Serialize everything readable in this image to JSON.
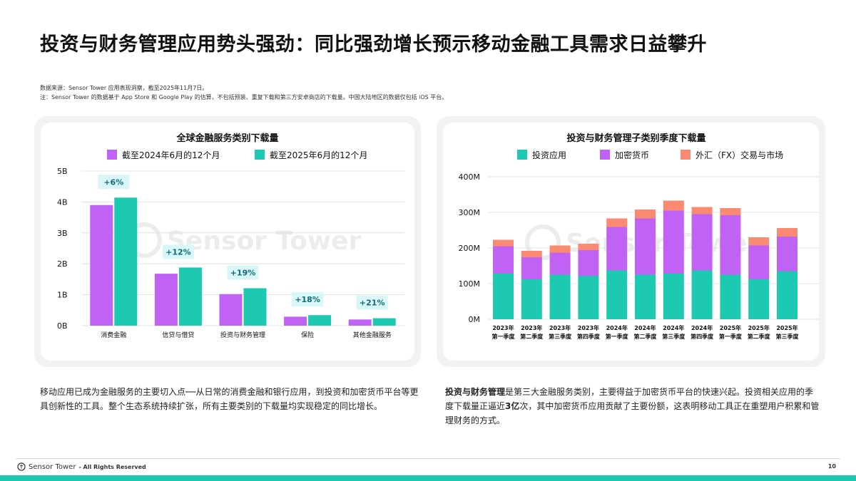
{
  "title": "投资与财务管理应用势头强劲：同比强劲增长预示移动金融工具需求日益攀升",
  "notes": {
    "line1": "数据来源：Sensor Tower 应用表现洞察，截至2025年11月7日。",
    "line2": "注：Sensor Tower 的数据基于 App Store 和 Google Play 的估算，不包括预装、重复下载和第三方安卓商店的下载量。中国大陆地区的数据仅包括 iOS 平台。"
  },
  "colors": {
    "purple": "#c062f4",
    "teal": "#1ec9b1",
    "salmon": "#fb8a73",
    "pct_bg": "#d9f6f8",
    "pct_text": "#0f6d7a"
  },
  "watermark": "Sensor Tower",
  "captions": {
    "left": "移动应用已成为金融服务的主要切入点──从日常的消费金融和银行应用，到投资和加密货币平台等更具创新性的工具。整个生态系统持续扩张，所有主要类别的下载量均实现稳定的同比增长。",
    "right_bold": "投资与财务管理",
    "right_a": "是第三大金融服务类别，主要得益于加密货币平台的快速兴起。投资相关应用的季度下载量正逼近",
    "right_bold2": "3亿",
    "right_b": "次，其中加密货币应用贡献了主要份额，这表明移动工具正在重塑用户积累和管理财务的方式。"
  },
  "footer": {
    "brand": "Sensor Tower",
    "rights": "- All Rights Reserved",
    "page": "10"
  },
  "chart_data": [
    {
      "type": "bar",
      "title": "全球金融服务类别下载量",
      "categories": [
        "消费金融",
        "信贷与借贷",
        "投资与财务管理",
        "保险",
        "其他金融服务"
      ],
      "series": [
        {
          "name": "截至2024年6月的12个月",
          "values": [
            3.9,
            1.68,
            1.02,
            0.29,
            0.2
          ]
        },
        {
          "name": "截至2025年6月的12个月",
          "values": [
            4.14,
            1.88,
            1.21,
            0.34,
            0.24
          ]
        }
      ],
      "growth_labels": [
        "+6%",
        "+12%",
        "+19%",
        "+18%",
        "+21%"
      ],
      "yticks": [
        "0B",
        "1B",
        "2B",
        "3B",
        "4B",
        "5B"
      ],
      "ylim": [
        0,
        5
      ],
      "legend": "top"
    },
    {
      "type": "bar",
      "stacked": true,
      "title": "投资与财务管理子类别季度下载量",
      "categories": [
        [
          "2023年",
          "第一季度"
        ],
        [
          "2023年",
          "第二季度"
        ],
        [
          "2023年",
          "第三季度"
        ],
        [
          "2023年",
          "第四季度"
        ],
        [
          "2024年",
          "第一季度"
        ],
        [
          "2024年",
          "第二季度"
        ],
        [
          "2024年",
          "第三季度"
        ],
        [
          "2024年",
          "第四季度"
        ],
        [
          "2025年",
          "第一季度"
        ],
        [
          "2025年",
          "第二季度"
        ],
        [
          "2025年",
          "第三季度"
        ]
      ],
      "series": [
        {
          "name": "投资应用",
          "values": [
            128,
            112,
            125,
            122,
            137,
            125,
            128,
            137,
            125,
            112,
            135
          ]
        },
        {
          "name": "加密货币",
          "values": [
            77,
            62,
            62,
            72,
            122,
            158,
            177,
            158,
            167,
            95,
            97
          ]
        },
        {
          "name": "外汇（FX）交易与市场",
          "values": [
            18,
            18,
            20,
            18,
            24,
            25,
            28,
            20,
            20,
            23,
            24
          ]
        }
      ],
      "yticks": [
        "0M",
        "100M",
        "200M",
        "300M",
        "400M"
      ],
      "ylim": [
        0,
        400
      ],
      "legend": "top"
    }
  ]
}
